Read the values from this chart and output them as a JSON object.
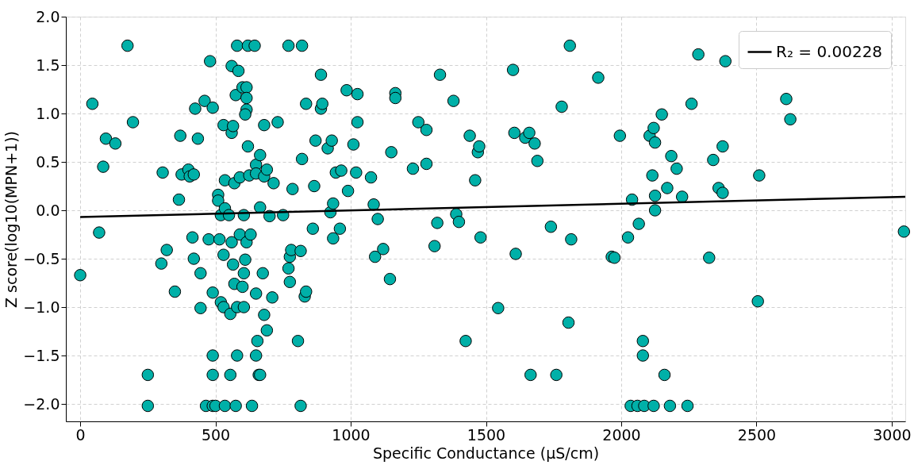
{
  "chart_data": {
    "type": "scatter",
    "xlabel": "Specific Conductance (µS/cm)",
    "ylabel": "Z score(log10(MPN+1))",
    "xlim": [
      -53,
      3050
    ],
    "ylim": [
      -2.18,
      2.0
    ],
    "xticks": [
      0,
      500,
      1000,
      1500,
      2000,
      2500,
      3000
    ],
    "yticks": [
      {
        "value": -2,
        "label": "−2.0"
      },
      {
        "value": -1.5,
        "label": "−1.5"
      },
      {
        "value": -1,
        "label": "−1.0"
      },
      {
        "value": -0.5,
        "label": "−0.5"
      },
      {
        "value": 0,
        "label": "0.0"
      },
      {
        "value": 0.5,
        "label": "0.5"
      },
      {
        "value": 1,
        "label": "1.0"
      },
      {
        "value": 1.5,
        "label": "1.5"
      },
      {
        "value": 2,
        "label": "2.0"
      }
    ],
    "grid": true,
    "legend": "top right",
    "line_style": "solid",
    "series": [
      {
        "marker": "circle",
        "color": "#00b0a8",
        "x": [
          0,
          45,
          70,
          85,
          95,
          130,
          175,
          195,
          300,
          305,
          320,
          250,
          250,
          350,
          365,
          370,
          375,
          400,
          405,
          415,
          420,
          420,
          425,
          435,
          445,
          445,
          460,
          475,
          480,
          490,
          490,
          490,
          490,
          465,
          490,
          500,
          510,
          510,
          520,
          515,
          520,
          530,
          530,
          530,
          535,
          535,
          550,
          555,
          555,
          535,
          560,
          560,
          565,
          560,
          565,
          570,
          575,
          570,
          580,
          580,
          575,
          580,
          585,
          590,
          590,
          600,
          600,
          605,
          605,
          605,
          615,
          615,
          615,
          610,
          620,
          610,
          615,
          620,
          625,
          630,
          635,
          645,
          650,
          650,
          650,
          650,
          655,
          660,
          665,
          665,
          665,
          675,
          680,
          680,
          680,
          690,
          690,
          700,
          710,
          715,
          730,
          750,
          770,
          770,
          775,
          775,
          780,
          785,
          805,
          815,
          815,
          820,
          820,
          830,
          835,
          835,
          860,
          865,
          870,
          890,
          890,
          895,
          915,
          925,
          930,
          935,
          935,
          945,
          960,
          965,
          985,
          990,
          1010,
          1020,
          1025,
          1025,
          1075,
          1085,
          1090,
          1100,
          1120,
          1145,
          1150,
          1165,
          1165,
          1230,
          1250,
          1280,
          1280,
          1310,
          1320,
          1330,
          1380,
          1390,
          1400,
          1425,
          1440,
          1460,
          1470,
          1475,
          1480,
          1545,
          1600,
          1605,
          1610,
          1645,
          1660,
          1665,
          1680,
          1690,
          1740,
          1760,
          1780,
          1810,
          1805,
          1815,
          1915,
          1965,
          1975,
          1995,
          2025,
          2040,
          2035,
          2060,
          2065,
          2080,
          2080,
          2085,
          2105,
          2115,
          2120,
          2125,
          2125,
          2125,
          2120,
          2150,
          2160,
          2170,
          2180,
          2185,
          2205,
          2225,
          2245,
          2260,
          2285,
          2325,
          2340,
          2360,
          2375,
          2375,
          2385,
          2505,
          2510,
          2610,
          2625,
          3045
        ],
        "values": [
          -0.67,
          1.1,
          -0.23,
          0.45,
          0.74,
          0.69,
          1.7,
          0.91,
          -0.55,
          0.39,
          -0.41,
          -1.7,
          -2.02,
          -0.84,
          0.11,
          0.77,
          0.37,
          0.42,
          0.35,
          -0.28,
          0.37,
          -0.5,
          1.05,
          0.74,
          -1.01,
          -0.65,
          1.13,
          -0.3,
          1.54,
          1.06,
          -0.85,
          -1.5,
          -1.7,
          -2.02,
          -2.02,
          -2.02,
          0.16,
          0.1,
          -0.05,
          -0.3,
          -0.95,
          -1.0,
          0.88,
          -0.46,
          0.02,
          0.31,
          -0.05,
          -1.07,
          -1.7,
          -2.02,
          1.49,
          0.8,
          0.87,
          -0.33,
          -0.56,
          -0.76,
          1.19,
          0.28,
          -1.0,
          -1.5,
          -2.02,
          1.7,
          1.44,
          0.34,
          -0.25,
          -0.79,
          1.27,
          -0.65,
          -1.0,
          -0.05,
          1.27,
          1.16,
          1.04,
          0.99,
          0.66,
          -0.51,
          -0.33,
          1.7,
          0.36,
          -0.25,
          -2.02,
          1.7,
          -0.86,
          0.47,
          0.38,
          -1.5,
          -1.35,
          -1.7,
          -1.7,
          0.03,
          0.57,
          -0.65,
          0.88,
          0.35,
          -1.08,
          -1.24,
          0.42,
          -0.06,
          -0.9,
          0.28,
          0.91,
          -0.05,
          -0.6,
          1.7,
          -0.48,
          -0.74,
          -0.41,
          0.22,
          -1.35,
          -0.42,
          -2.02,
          1.7,
          0.53,
          -0.89,
          -0.84,
          1.1,
          -0.19,
          0.25,
          0.72,
          1.05,
          1.4,
          1.1,
          0.64,
          -0.02,
          0.72,
          0.07,
          -0.29,
          0.39,
          -0.19,
          0.41,
          1.24,
          0.2,
          0.68,
          0.39,
          1.2,
          0.91,
          0.34,
          0.06,
          -0.48,
          -0.09,
          -0.4,
          -0.71,
          0.6,
          1.21,
          1.16,
          0.43,
          0.91,
          0.48,
          0.83,
          -0.37,
          -0.13,
          1.4,
          1.13,
          -0.04,
          -0.12,
          -1.35,
          0.77,
          0.31,
          0.6,
          0.66,
          -0.28,
          -1.01,
          1.45,
          0.8,
          -0.45,
          0.75,
          0.8,
          -1.7,
          0.69,
          0.51,
          -0.17,
          -1.7,
          1.07,
          1.7,
          -1.16,
          -0.3,
          1.37,
          -0.48,
          -0.49,
          0.77,
          -0.28,
          0.11,
          -2.02,
          -2.02,
          -0.14,
          -1.35,
          -1.5,
          -2.02,
          0.77,
          0.36,
          0.85,
          0.7,
          0.0,
          0.15,
          -2.02,
          0.99,
          -1.7,
          0.23,
          -2.02,
          0.56,
          0.43,
          0.14,
          -2.02,
          1.1,
          1.61,
          -0.49,
          0.52,
          0.23,
          0.18,
          0.66,
          1.54,
          -0.94,
          0.36,
          1.15,
          0.94,
          -0.22
        ]
      },
      {
        "type": "line",
        "name": "R₂ = 0.00228",
        "color": "#000000",
        "x": [
          0,
          3050
        ],
        "values": [
          -0.07,
          0.14
        ]
      }
    ]
  }
}
